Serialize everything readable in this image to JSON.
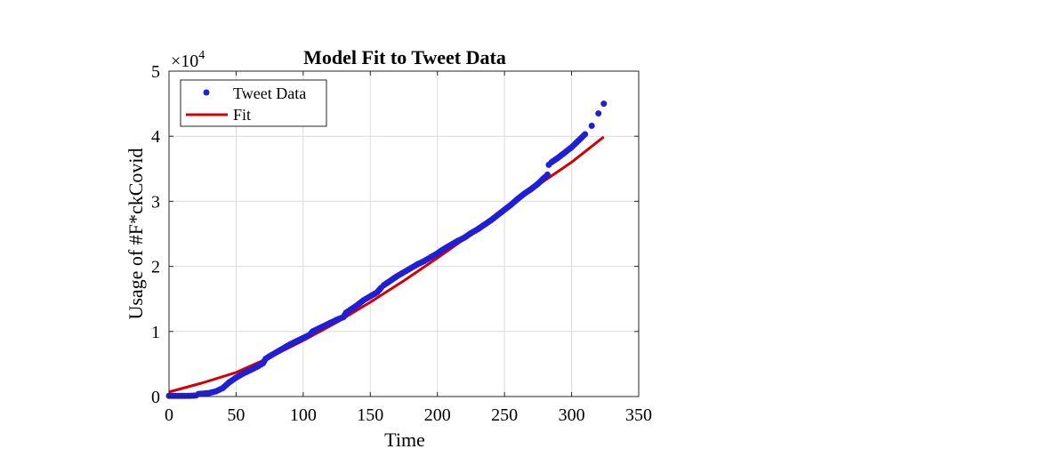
{
  "chart_data": {
    "type": "scatter",
    "title": "Model Fit to Tweet Data",
    "xlabel": "Time",
    "ylabel": "Usage of #F*ckCovid",
    "y_multiplier_base": "×10",
    "y_multiplier_exp": "4",
    "xlim": [
      0,
      350
    ],
    "ylim": [
      0,
      50000
    ],
    "x_ticks": [
      0,
      50,
      100,
      150,
      200,
      250,
      300,
      350
    ],
    "x_tick_labels": [
      "0",
      "50",
      "100",
      "150",
      "200",
      "250",
      "300",
      "350"
    ],
    "y_ticks": [
      0,
      10000,
      20000,
      30000,
      40000,
      50000
    ],
    "y_tick_labels": [
      "0",
      "1",
      "2",
      "3",
      "4",
      "5"
    ],
    "grid": true,
    "legend_position": "top-left",
    "series": [
      {
        "name": "Tweet Data",
        "kind": "scatter",
        "color": "#1f1fd6",
        "x": [
          0,
          5,
          10,
          15,
          20,
          22,
          25,
          30,
          35,
          40,
          45,
          50,
          55,
          60,
          65,
          70,
          72,
          75,
          80,
          85,
          90,
          95,
          100,
          105,
          107,
          110,
          115,
          120,
          125,
          130,
          132,
          135,
          140,
          145,
          150,
          155,
          158,
          160,
          165,
          170,
          175,
          180,
          185,
          190,
          195,
          200,
          205,
          210,
          215,
          220,
          225,
          230,
          235,
          240,
          245,
          250,
          255,
          260,
          265,
          270,
          275,
          280,
          282,
          283,
          285,
          290,
          295,
          300,
          305,
          310,
          315,
          320,
          324
        ],
        "y": [
          100,
          100,
          100,
          100,
          150,
          400,
          450,
          550,
          800,
          1300,
          2200,
          2900,
          3500,
          4000,
          4500,
          5100,
          5800,
          6200,
          6800,
          7400,
          8000,
          8500,
          9000,
          9500,
          10000,
          10300,
          10800,
          11300,
          11800,
          12200,
          12900,
          13300,
          14000,
          14800,
          15400,
          16000,
          16700,
          17100,
          17800,
          18500,
          19100,
          19700,
          20300,
          20800,
          21400,
          22000,
          22700,
          23300,
          23900,
          24400,
          25100,
          25700,
          26400,
          27100,
          27900,
          28700,
          29500,
          30400,
          31200,
          31900,
          32700,
          33700,
          34100,
          35600,
          36000,
          36700,
          37500,
          38300,
          39300,
          40300,
          41600,
          43500,
          45000
        ]
      },
      {
        "name": "Fit",
        "kind": "line",
        "color": "#d40000",
        "x": [
          0,
          25,
          50,
          75,
          100,
          125,
          150,
          175,
          200,
          225,
          250,
          275,
          300,
          324
        ],
        "y": [
          700,
          2100,
          3700,
          6000,
          8600,
          11400,
          14500,
          17800,
          21300,
          24900,
          28500,
          32500,
          36000,
          39900
        ]
      }
    ]
  }
}
